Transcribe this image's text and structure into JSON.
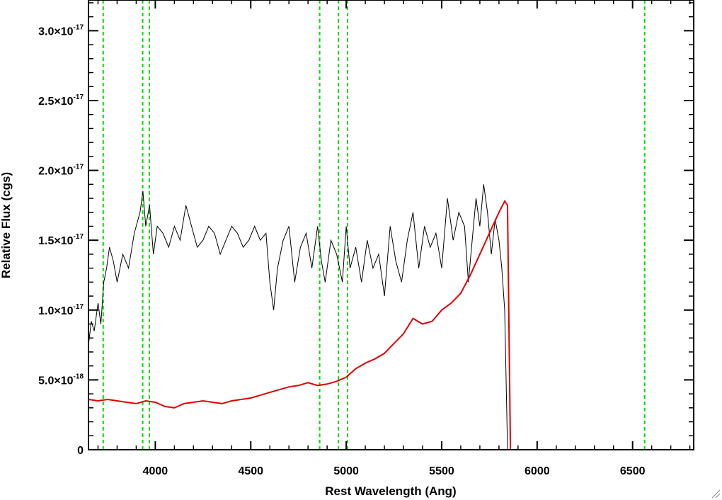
{
  "chart_data": {
    "type": "line",
    "title": "",
    "xlabel": "Rest Wavelength (Ang)",
    "ylabel": "Relative Flux (cgs)",
    "xlim": [
      3650,
      6820
    ],
    "ylim": [
      0,
      3.22e-17
    ],
    "x_ticks": [
      4000,
      4500,
      5000,
      5500,
      6000,
      6500
    ],
    "x_tick_labels": [
      "4000",
      "4500",
      "5000",
      "5500",
      "6000",
      "6500"
    ],
    "y_ticks": [
      {
        "value": 0,
        "mantissa": "0",
        "exp": ""
      },
      {
        "value": 5e-18,
        "mantissa": "5.0×10",
        "exp": "-18"
      },
      {
        "value": 1e-17,
        "mantissa": "1.0×10",
        "exp": "-17"
      },
      {
        "value": 1.5e-17,
        "mantissa": "1.5×10",
        "exp": "-17"
      },
      {
        "value": 2e-17,
        "mantissa": "2.0×10",
        "exp": "-17"
      },
      {
        "value": 2.5e-17,
        "mantissa": "2.5×10",
        "exp": "-17"
      },
      {
        "value": 3e-17,
        "mantissa": "3.0×10",
        "exp": "-17"
      }
    ],
    "grid": false,
    "legend": "none",
    "reference_lines_x": [
      3727,
      3934,
      3969,
      4861,
      4959,
      5007,
      6563
    ],
    "series": [
      {
        "color": "#000000",
        "x": [
          3650,
          3665,
          3680,
          3700,
          3715,
          3730,
          3745,
          3760,
          3780,
          3800,
          3830,
          3860,
          3890,
          3920,
          3935,
          3950,
          3970,
          3990,
          4010,
          4040,
          4070,
          4100,
          4130,
          4160,
          4190,
          4220,
          4250,
          4280,
          4310,
          4340,
          4370,
          4400,
          4430,
          4460,
          4490,
          4520,
          4550,
          4580,
          4600,
          4620,
          4640,
          4670,
          4700,
          4730,
          4760,
          4790,
          4820,
          4850,
          4870,
          4890,
          4920,
          4950,
          4980,
          5000,
          5020,
          5050,
          5080,
          5110,
          5140,
          5170,
          5200,
          5230,
          5260,
          5290,
          5320,
          5350,
          5380,
          5410,
          5440,
          5470,
          5500,
          5530,
          5560,
          5590,
          5620,
          5640,
          5660,
          5680,
          5700,
          5720,
          5740,
          5760,
          5780,
          5800,
          5815,
          5830,
          5845
        ],
        "y": [
          7.5e-18,
          9.2e-18,
          8.5e-18,
          1.05e-17,
          9e-18,
          1.2e-17,
          1.3e-17,
          1.45e-17,
          1.35e-17,
          1.2e-17,
          1.4e-17,
          1.3e-17,
          1.55e-17,
          1.7e-17,
          1.85e-17,
          1.6e-17,
          1.75e-17,
          1.4e-17,
          1.6e-17,
          1.55e-17,
          1.45e-17,
          1.6e-17,
          1.5e-17,
          1.75e-17,
          1.6e-17,
          1.45e-17,
          1.5e-17,
          1.6e-17,
          1.55e-17,
          1.4e-17,
          1.5e-17,
          1.6e-17,
          1.55e-17,
          1.45e-17,
          1.5e-17,
          1.6e-17,
          1.5e-17,
          1.55e-17,
          1.2e-17,
          1e-17,
          1.3e-17,
          1.5e-17,
          1.6e-17,
          1.2e-17,
          1.45e-17,
          1.55e-17,
          1.3e-17,
          1.6e-17,
          1.35e-17,
          1.2e-17,
          1.5e-17,
          1.4e-17,
          1.2e-17,
          1.6e-17,
          1.3e-17,
          1.45e-17,
          1.2e-17,
          1.5e-17,
          1.3e-17,
          1.4e-17,
          1.1e-17,
          1.6e-17,
          1.35e-17,
          1.2e-17,
          1.5e-17,
          1.7e-17,
          1.3e-17,
          1.6e-17,
          1.45e-17,
          1.55e-17,
          1.3e-17,
          1.8e-17,
          1.5e-17,
          1.7e-17,
          1.6e-17,
          1.2e-17,
          1.5e-17,
          1.8e-17,
          1.6e-17,
          1.9e-17,
          1.7e-17,
          1.4e-17,
          1.65e-17,
          1.5e-17,
          1.3e-17,
          1e-17,
          0
        ]
      },
      {
        "color": "#e00000",
        "x": [
          3650,
          3700,
          3750,
          3800,
          3850,
          3900,
          3950,
          4000,
          4050,
          4100,
          4150,
          4200,
          4250,
          4300,
          4350,
          4400,
          4450,
          4500,
          4550,
          4600,
          4650,
          4700,
          4750,
          4800,
          4850,
          4900,
          4950,
          5000,
          5050,
          5100,
          5150,
          5200,
          5250,
          5300,
          5350,
          5400,
          5450,
          5500,
          5550,
          5600,
          5650,
          5700,
          5750,
          5800,
          5830,
          5845,
          5860,
          6000,
          6200,
          6400,
          6600,
          6820
        ],
        "y": [
          3.6e-18,
          3.5e-18,
          3.6e-18,
          3.5e-18,
          3.4e-18,
          3.3e-18,
          3.5e-18,
          3.4e-18,
          3.1e-18,
          3e-18,
          3.3e-18,
          3.4e-18,
          3.5e-18,
          3.4e-18,
          3.3e-18,
          3.5e-18,
          3.6e-18,
          3.7e-18,
          3.9e-18,
          4.1e-18,
          4.3e-18,
          4.5e-18,
          4.6e-18,
          4.8e-18,
          4.6e-18,
          4.7e-18,
          4.9e-18,
          5.2e-18,
          5.8e-18,
          6.2e-18,
          6.5e-18,
          6.9e-18,
          7.6e-18,
          8.3e-18,
          9.4e-18,
          9e-18,
          9.2e-18,
          1e-17,
          1.05e-17,
          1.12e-17,
          1.25e-17,
          1.4e-17,
          1.55e-17,
          1.7e-17,
          1.78e-17,
          1.75e-17,
          0,
          0,
          0,
          0,
          0,
          0
        ]
      }
    ]
  }
}
